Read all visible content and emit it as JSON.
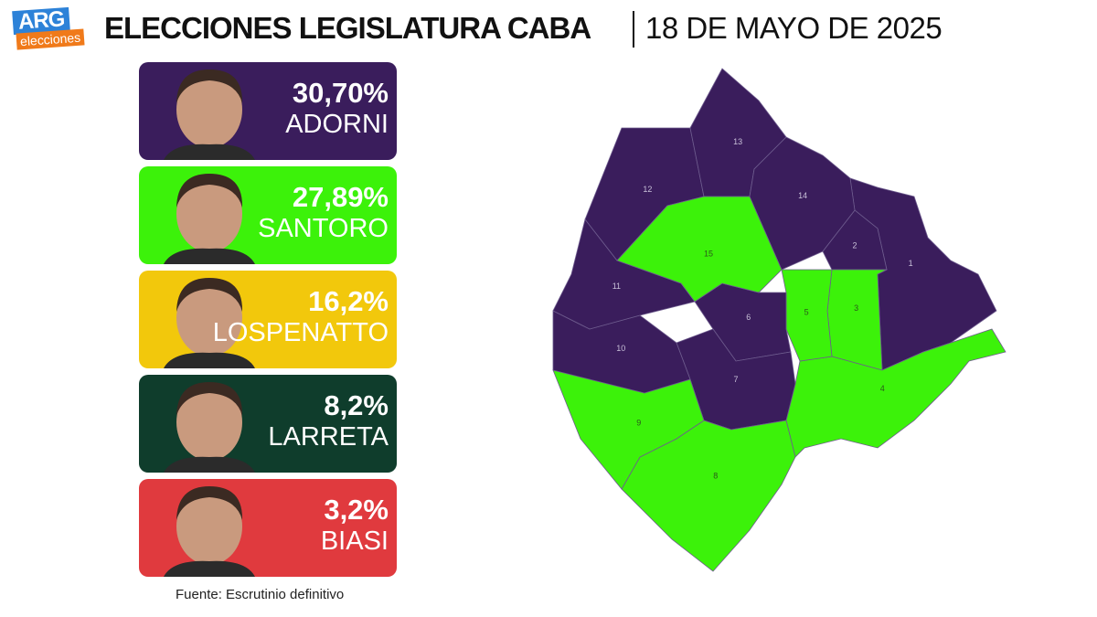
{
  "header": {
    "logo": "ARG",
    "logo_sub": "elecciones",
    "title": "ELECCIONES LEGISLATURA CABA",
    "date": "18 DE MAYO DE 2025"
  },
  "candidates": [
    {
      "percent": "30,70%",
      "name": "ADORNI",
      "color": "#3a1d5c"
    },
    {
      "percent": "27,89%",
      "name": "SANTORO",
      "color": "#3cf20a"
    },
    {
      "percent": "16,2%",
      "name": "LOSPENATTO",
      "color": "#f2c80c"
    },
    {
      "percent": "8,2%",
      "name": "LARRETA",
      "color": "#0f3d2c"
    },
    {
      "percent": "3,2%",
      "name": "BIASI",
      "color": "#e03a3e"
    }
  ],
  "source": "Fuente: Escrutinio definitivo",
  "map": {
    "comunas": [
      {
        "label": "1",
        "color": "#3a1d5c"
      },
      {
        "label": "2",
        "color": "#3a1d5c"
      },
      {
        "label": "3",
        "color": "#3cf20a"
      },
      {
        "label": "4",
        "color": "#3cf20a"
      },
      {
        "label": "5",
        "color": "#3cf20a"
      },
      {
        "label": "6",
        "color": "#3a1d5c"
      },
      {
        "label": "7",
        "color": "#3a1d5c"
      },
      {
        "label": "8",
        "color": "#3cf20a"
      },
      {
        "label": "9",
        "color": "#3cf20a"
      },
      {
        "label": "10",
        "color": "#3a1d5c"
      },
      {
        "label": "11",
        "color": "#3a1d5c"
      },
      {
        "label": "12",
        "color": "#3a1d5c"
      },
      {
        "label": "13",
        "color": "#3a1d5c"
      },
      {
        "label": "14",
        "color": "#3a1d5c"
      },
      {
        "label": "15",
        "color": "#3cf20a"
      }
    ]
  }
}
